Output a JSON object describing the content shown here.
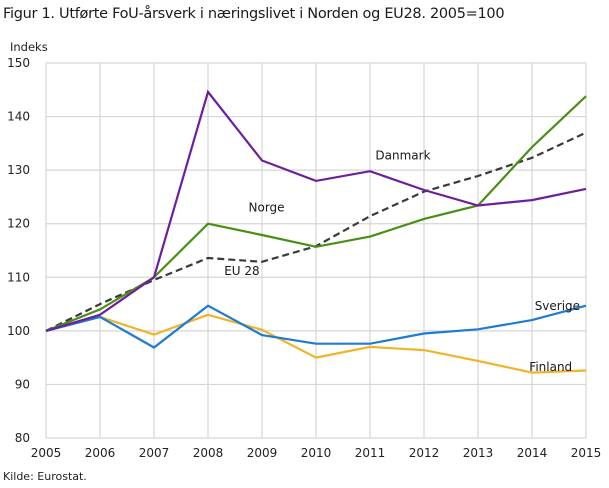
{
  "title": "Figur 1. Utførte FoU-årsverk i næringslivet i Norden og EU28. 2005=100",
  "source": "Kilde: Eurostat.",
  "colors": {
    "Danmark": "#6e1e9a",
    "Norge": "#4a8f14",
    "EU 28": "#3a3a3a",
    "Sverige": "#1f7bd1",
    "Finland": "#f0b429",
    "grid": "#d6d6d6"
  },
  "chart_data": {
    "type": "line",
    "title": "Figur 1. Utførte FoU-årsverk i næringslivet i Norden og EU28. 2005=100",
    "xlabel": "",
    "ylabel": "Indeks",
    "x": [
      2005,
      2006,
      2007,
      2008,
      2009,
      2010,
      2011,
      2012,
      2013,
      2014,
      2015
    ],
    "ylim": [
      80,
      150
    ],
    "yticks": [
      80,
      90,
      100,
      110,
      120,
      130,
      140,
      150
    ],
    "grid": true,
    "legend_position": "inline labels",
    "series": [
      {
        "name": "Danmark",
        "values": [
          100,
          103.0,
          110.0,
          144.6,
          131.8,
          128.0,
          129.8,
          126.3,
          123.4,
          124.4,
          126.5
        ],
        "style": "solid"
      },
      {
        "name": "Norge",
        "values": [
          100,
          104.0,
          110.0,
          120.0,
          117.9,
          115.7,
          117.6,
          120.9,
          123.4,
          134.3,
          143.8
        ],
        "style": "solid"
      },
      {
        "name": "EU 28",
        "values": [
          100,
          105.0,
          109.5,
          113.6,
          112.9,
          115.8,
          121.4,
          126.0,
          128.9,
          132.3,
          137.0
        ],
        "style": "dashed"
      },
      {
        "name": "Sverige",
        "values": [
          100,
          102.6,
          96.9,
          104.7,
          99.2,
          97.6,
          97.6,
          99.5,
          100.3,
          102.0,
          104.7
        ],
        "style": "solid"
      },
      {
        "name": "Finland",
        "values": [
          100,
          102.6,
          99.3,
          103.0,
          100.2,
          95.0,
          97.0,
          96.4,
          94.4,
          92.2,
          92.6
        ],
        "style": "solid"
      }
    ],
    "annotations": [
      {
        "text": "Danmark",
        "x": 2011.1,
        "y": 132
      },
      {
        "text": "Norge",
        "x": 2008.75,
        "y": 122.3
      },
      {
        "text": "EU 28",
        "x": 2008.3,
        "y": 110.4
      },
      {
        "text": "Sverige",
        "x": 2014.05,
        "y": 103.9
      },
      {
        "text": "Finland",
        "x": 2013.95,
        "y": 92.5
      }
    ]
  }
}
